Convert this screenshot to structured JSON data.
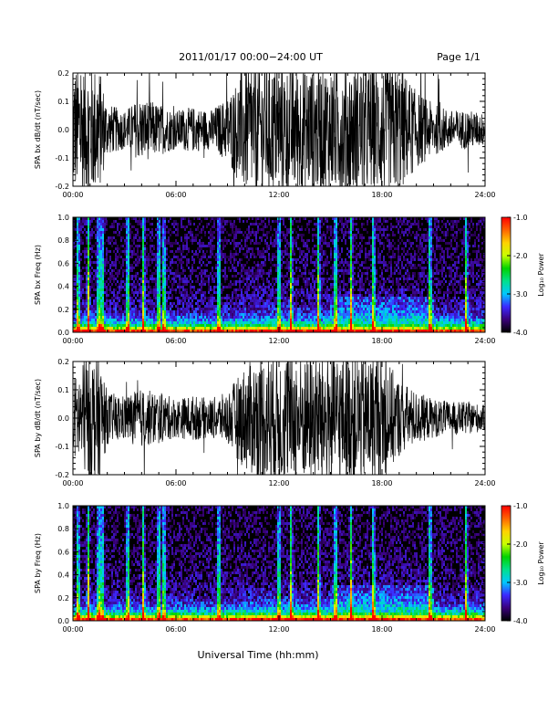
{
  "header": {
    "date_range": "2011/01/17  00:00−24:00 UT",
    "page": "Page 1/1"
  },
  "xaxis": {
    "label": "Universal Time (hh:mm)",
    "ticks": [
      "00:00",
      "06:00",
      "12:00",
      "18:00",
      "24:00"
    ],
    "range_hours": [
      0,
      24
    ]
  },
  "colorbar": {
    "label": "Log₁₀ Power",
    "ticks": [
      "-1.0",
      "-2.0",
      "-3.0",
      "-4.0"
    ],
    "range": [
      -4.0,
      -1.0
    ],
    "colors": [
      "#000000",
      "#3a007a",
      "#3c28ff",
      "#00c8ff",
      "#00e08c",
      "#00d200",
      "#c8ff00",
      "#ffd200",
      "#ff6400",
      "#ff0000"
    ]
  },
  "chart_data": [
    {
      "type": "line",
      "ylabel": "SPA bx dB/dt (nT/sec)",
      "ylim": [
        -0.2,
        0.2
      ],
      "yticks": [
        "0.2",
        "0.1",
        "0.0",
        "-0.1",
        "-0.2"
      ],
      "x_hours": [
        0,
        1,
        1.5,
        2,
        3,
        4,
        5,
        6,
        7,
        8,
        9,
        10,
        11,
        12,
        13,
        14,
        15,
        16,
        17,
        18,
        19,
        20,
        21,
        22,
        23,
        24
      ],
      "amplitude": [
        0.2,
        0.2,
        0.2,
        0.08,
        0.06,
        0.1,
        0.08,
        0.06,
        0.07,
        0.06,
        0.1,
        0.2,
        0.2,
        0.2,
        0.2,
        0.2,
        0.2,
        0.2,
        0.2,
        0.2,
        0.2,
        0.12,
        0.08,
        0.06,
        0.06,
        0.05
      ]
    },
    {
      "type": "heatmap",
      "ylabel": "SPA bx Freq (Hz)",
      "ylim": [
        0.0,
        1.0
      ],
      "yticks": [
        "1.0",
        "0.8",
        "0.6",
        "0.4",
        "0.2",
        "0.0"
      ],
      "zlim": [
        -4.0,
        -1.0
      ],
      "bursts_hours": [
        0.3,
        0.9,
        1.5,
        1.7,
        3.2,
        4.1,
        5.0,
        5.3,
        8.5,
        12.0,
        12.7,
        14.3,
        15.3,
        16.2,
        17.5,
        20.8,
        22.9
      ]
    },
    {
      "type": "line",
      "ylabel": "SPA by dB/dt (nT/sec)",
      "ylim": [
        -0.2,
        0.2
      ],
      "yticks": [
        "0.2",
        "0.1",
        "0.0",
        "-0.1",
        "-0.2"
      ],
      "x_hours": [
        0,
        1,
        1.5,
        2,
        3,
        4,
        5,
        6,
        7,
        8,
        9,
        10,
        11,
        12,
        13,
        14,
        15,
        16,
        17,
        18,
        19,
        20,
        21,
        22,
        23,
        24
      ],
      "amplitude": [
        0.12,
        0.2,
        0.2,
        0.08,
        0.07,
        0.09,
        0.08,
        0.06,
        0.07,
        0.06,
        0.08,
        0.16,
        0.2,
        0.2,
        0.2,
        0.2,
        0.2,
        0.2,
        0.2,
        0.2,
        0.12,
        0.08,
        0.06,
        0.05,
        0.05,
        0.04
      ]
    },
    {
      "type": "heatmap",
      "ylabel": "SPA by Freq (Hz)",
      "ylim": [
        0.0,
        1.0
      ],
      "yticks": [
        "1.0",
        "0.8",
        "0.6",
        "0.4",
        "0.2",
        "0.0"
      ],
      "zlim": [
        -4.0,
        -1.0
      ],
      "bursts_hours": [
        0.3,
        0.9,
        1.5,
        1.7,
        3.2,
        4.1,
        5.0,
        5.3,
        8.5,
        12.0,
        12.7,
        14.3,
        15.3,
        16.2,
        17.5,
        20.8,
        22.9
      ]
    }
  ]
}
